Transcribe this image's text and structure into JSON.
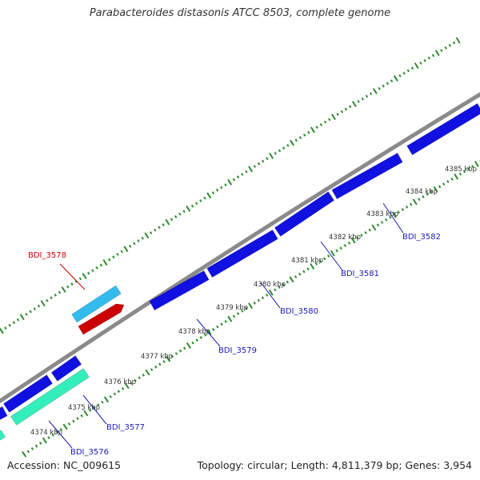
{
  "title": "Parabacteroides distasonis ATCC 8503, complete genome",
  "footer": {
    "accession": "Accession: NC_009615",
    "summary": "Topology: circular; Length: 4,811,379 bp; Genes: 3,954"
  },
  "colors": {
    "backbone": "#8a8a8a",
    "tick": "#2e8b2e",
    "gene_forward": "#1010e0",
    "gene_label_blue": "#1a1ab8",
    "gene_highlight": "#cc0000",
    "gene_cyan": "#33bbee",
    "gene_green": "#33eebb"
  },
  "scale_labels": [
    "4374 kbp",
    "4375 kbp",
    "4376 kbp",
    "4377 kbp",
    "4378 kbp",
    "4379 kbp",
    "4380 kbp",
    "4381 kbp",
    "4382 kbp",
    "4383 kbp",
    "4384 kbp",
    "4385 kbp"
  ],
  "gene_labels": [
    {
      "name": "BDI_3576",
      "color": "blue"
    },
    {
      "name": "BDI_3577",
      "color": "blue"
    },
    {
      "name": "BDI_3578",
      "color": "red"
    },
    {
      "name": "BDI_3579",
      "color": "blue"
    },
    {
      "name": "BDI_3580",
      "color": "blue"
    },
    {
      "name": "BDI_3581",
      "color": "blue"
    },
    {
      "name": "BDI_3582",
      "color": "blue"
    }
  ]
}
